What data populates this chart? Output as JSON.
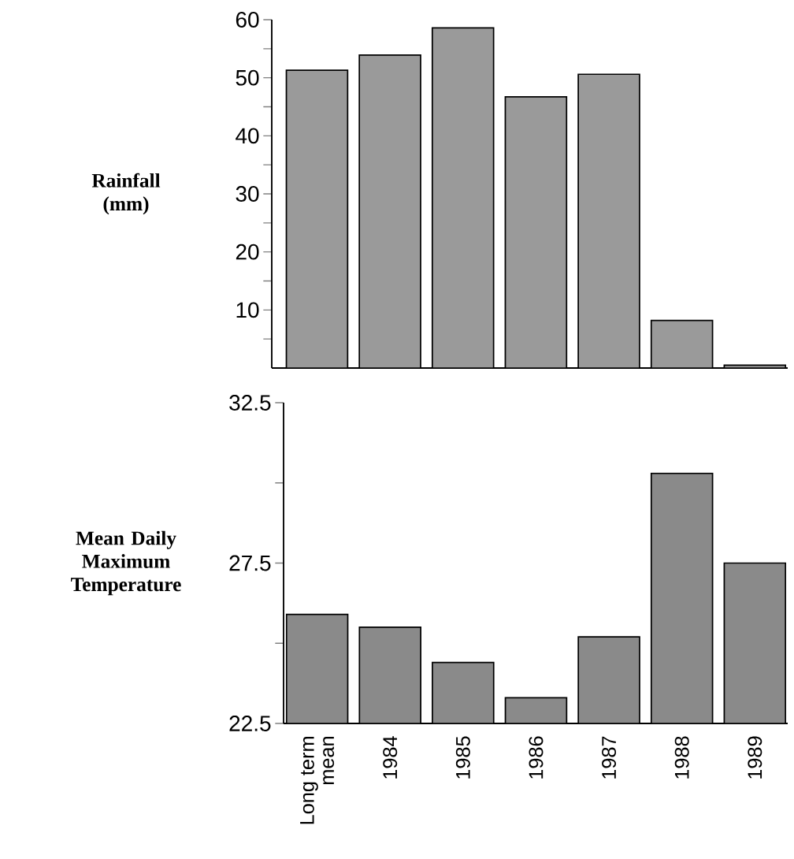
{
  "chart_data": [
    {
      "type": "bar",
      "ylabel": "Rainfall (mm)",
      "categories": [
        null,
        null,
        null,
        null,
        null,
        null,
        null
      ],
      "values": [
        51.3,
        53.9,
        58.6,
        46.7,
        50.6,
        8.2,
        0.5
      ],
      "color": "#9a9a9a",
      "ylim": [
        0,
        60
      ],
      "yticks": [
        {
          "value": 5,
          "label": null
        },
        10,
        {
          "value": 15,
          "label": null
        },
        20,
        {
          "value": 25,
          "label": null
        },
        30,
        {
          "value": 35,
          "label": null
        },
        40,
        {
          "value": 45,
          "label": null
        },
        50,
        {
          "value": 55,
          "label": null
        },
        60
      ],
      "tick_labels": "y"
    },
    {
      "type": "bar",
      "ylabel": "Mean Daily Maximum Temperature",
      "categories": [
        "Long term mean",
        "1984",
        "1985",
        "1986",
        "1987",
        "1988",
        "1989"
      ],
      "values": [
        25.9,
        25.5,
        24.4,
        23.3,
        25.2,
        30.3,
        27.5
      ],
      "color": "#8a8a8a",
      "ylim": [
        22.5,
        32.5
      ],
      "yticks": [
        22.5,
        {
          "value": 25,
          "label": null
        },
        27.5,
        {
          "value": 30,
          "label": null
        },
        32.5
      ]
    }
  ]
}
